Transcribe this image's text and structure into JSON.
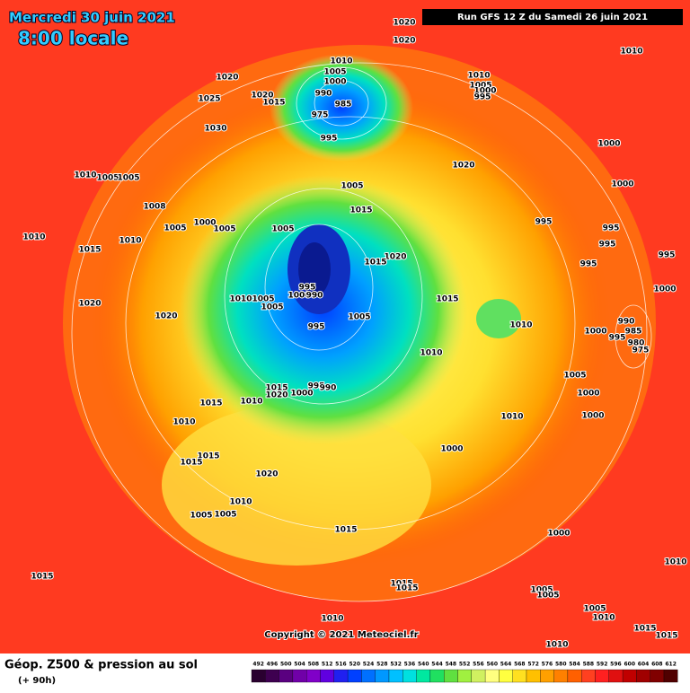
{
  "header": {
    "date": "Mercredi 30 juin 2021",
    "time": "8:00 locale",
    "run": "Run GFS 12 Z du Samedi 26 juin 2021"
  },
  "copyright": "Copyright © 2021 Meteociel.fr",
  "footer": {
    "title": "Géop. Z500 & pression au sol",
    "subtitle": "(+ 90h)"
  },
  "scale": {
    "values": [
      492,
      496,
      500,
      504,
      508,
      512,
      516,
      520,
      524,
      528,
      532,
      536,
      540,
      544,
      548,
      552,
      556,
      560,
      564,
      568,
      572,
      576,
      580,
      584,
      588,
      592,
      596,
      600,
      604,
      608,
      612
    ],
    "colors": [
      "#2a0030",
      "#3e0050",
      "#5a0080",
      "#7000a8",
      "#8000c8",
      "#6000e0",
      "#2020f0",
      "#0040ff",
      "#0070ff",
      "#0098ff",
      "#00c0ff",
      "#00e0e0",
      "#00e8a0",
      "#20e060",
      "#60e040",
      "#a0f040",
      "#d0f060",
      "#ffff80",
      "#ffff40",
      "#ffe020",
      "#ffc000",
      "#ffa000",
      "#ff8000",
      "#ff6000",
      "#ff4020",
      "#ff2020",
      "#e01010",
      "#c00000",
      "#a00000",
      "#800000",
      "#500000"
    ]
  },
  "isobar_labels": [
    1020,
    1020,
    1010,
    1010,
    1005,
    1000,
    990,
    985,
    975,
    995,
    1020,
    1025,
    1020,
    1015,
    1030,
    1010,
    1005,
    1000,
    995,
    1010,
    1005,
    1005,
    1020,
    1000,
    1000,
    1005,
    1008,
    1015,
    1000,
    1005,
    1005,
    1005,
    995,
    995,
    995,
    1010,
    1015,
    1010,
    1020,
    1015,
    995,
    995,
    1000,
    995,
    1000,
    990,
    1010,
    1005,
    1005,
    1015,
    1020,
    1005,
    1010,
    990,
    985,
    995,
    980,
    975,
    1000,
    1020,
    995,
    1010,
    1005,
    1015,
    1020,
    1000,
    995,
    990,
    1000,
    1015,
    1010,
    1000,
    1010,
    1010,
    1015,
    1015,
    1000,
    1020,
    1010,
    1005,
    1005,
    1015,
    1000,
    1010,
    1015,
    1015,
    1015,
    1005,
    1005,
    1005,
    1010,
    1010,
    1015,
    1015,
    1010
  ]
}
